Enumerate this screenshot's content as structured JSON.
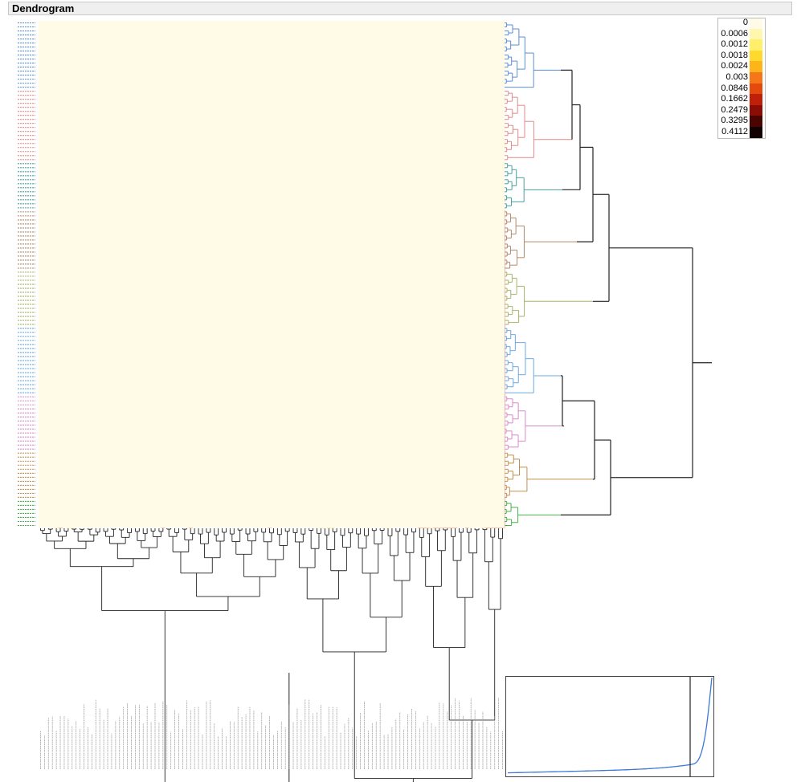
{
  "window": {
    "title": "Dendrogram"
  },
  "legend": {
    "entries": [
      {
        "label": "0",
        "color": "#fffbe6"
      },
      {
        "label": "0.0006",
        "color": "#fff7b0"
      },
      {
        "label": "0.0012",
        "color": "#ffef6a"
      },
      {
        "label": "0.0018",
        "color": "#ffd92e"
      },
      {
        "label": "0.0024",
        "color": "#ffb419"
      },
      {
        "label": "0.003",
        "color": "#f6771a"
      },
      {
        "label": "0.0846",
        "color": "#e44a0b"
      },
      {
        "label": "0.1662",
        "color": "#c01f0a"
      },
      {
        "label": "0.2479",
        "color": "#8a0d06"
      },
      {
        "label": "0.3295",
        "color": "#4a0503"
      },
      {
        "label": "0.4112",
        "color": "#120101"
      }
    ]
  },
  "chart_data": {
    "type": "heatmap",
    "title": "Dendrogram",
    "color_scale": [
      "0",
      "0.0006",
      "0.0012",
      "0.0018",
      "0.0024",
      "0.003",
      "0.0846",
      "0.1662",
      "0.2479",
      "0.3295",
      "0.4112"
    ],
    "value_range": [
      0,
      0.4112
    ],
    "row_clusters": [
      {
        "color": "#5a8ed6"
      },
      {
        "color": "#e08a8a"
      },
      {
        "color": "#4aa0a0"
      },
      {
        "color": "#b08a6a"
      },
      {
        "color": "#a8b46a"
      },
      {
        "color": "#6aa8e0"
      },
      {
        "color": "#d88ac8"
      },
      {
        "color": "#c09050"
      },
      {
        "color": "#4ab04a"
      }
    ],
    "distance_plot": {
      "type": "line",
      "line_color": "#3b78d8",
      "has_cut_line": true
    }
  }
}
